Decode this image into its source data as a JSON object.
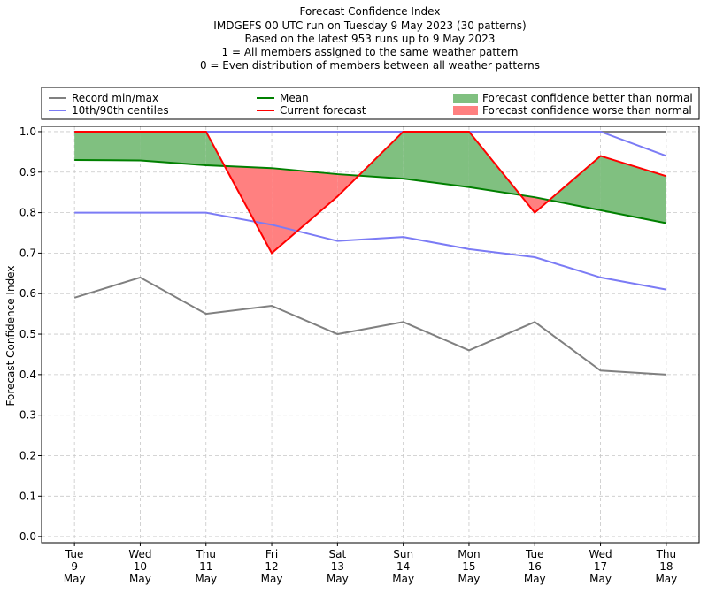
{
  "chart_data": {
    "type": "line",
    "title": "Forecast Confidence Index",
    "subtitle": [
      "IMDGEFS 00 UTC run on Tuesday 9 May 2023 (30 patterns)",
      "Based on the latest 953 runs up to 9 May 2023",
      "1 = All members assigned to the same weather pattern",
      "0 = Even distribution of members between all weather patterns"
    ],
    "ylabel": "Forecast Confidence Index",
    "categories": [
      [
        "Tue",
        "9",
        "May"
      ],
      [
        "Wed",
        "10",
        "May"
      ],
      [
        "Thu",
        "11",
        "May"
      ],
      [
        "Fri",
        "12",
        "May"
      ],
      [
        "Sat",
        "13",
        "May"
      ],
      [
        "Sun",
        "14",
        "May"
      ],
      [
        "Mon",
        "15",
        "May"
      ],
      [
        "Tue",
        "16",
        "May"
      ],
      [
        "Wed",
        "17",
        "May"
      ],
      [
        "Thu",
        "18",
        "May"
      ]
    ],
    "ylim": [
      -0.015,
      1.013
    ],
    "yticks": [
      {
        "value": 0,
        "label": "0.0"
      },
      0.1,
      0.2,
      0.3,
      0.4,
      0.5,
      0.6,
      0.7,
      0.8,
      0.9,
      {
        "value": 1,
        "label": "1.0"
      }
    ],
    "grid": true,
    "series": [
      {
        "name": "Record min/max",
        "color": "#808080",
        "values": [
          0.59,
          0.64,
          0.55,
          0.57,
          0.5,
          0.53,
          0.46,
          0.53,
          0.41,
          0.4
        ],
        "upper": [
          1,
          1,
          1,
          1,
          1,
          1,
          1,
          1,
          1,
          1
        ]
      },
      {
        "name": "10th/90th centiles",
        "color": "#7b7bf5",
        "values": [
          0.8,
          0.8,
          0.8,
          0.77,
          0.73,
          0.74,
          0.71,
          0.69,
          0.64,
          0.61
        ],
        "upper": [
          1,
          1,
          1,
          1,
          1,
          1,
          1,
          1,
          1,
          0.94
        ]
      },
      {
        "name": "Mean",
        "color": "#008000",
        "values": [
          0.93,
          0.929,
          0.917,
          0.91,
          0.895,
          0.884,
          0.863,
          0.838,
          0.806,
          0.774
        ]
      },
      {
        "name": "Current forecast",
        "color": "#ff0000",
        "values": [
          1.0,
          1.0,
          1.0,
          0.7,
          0.84,
          1.0,
          1.0,
          0.8,
          0.94,
          0.89
        ]
      }
    ],
    "fills": [
      {
        "name": "Forecast confidence better than normal",
        "color": "#80c080"
      },
      {
        "name": "Forecast confidence worse than normal",
        "color": "#ff8080"
      }
    ]
  }
}
